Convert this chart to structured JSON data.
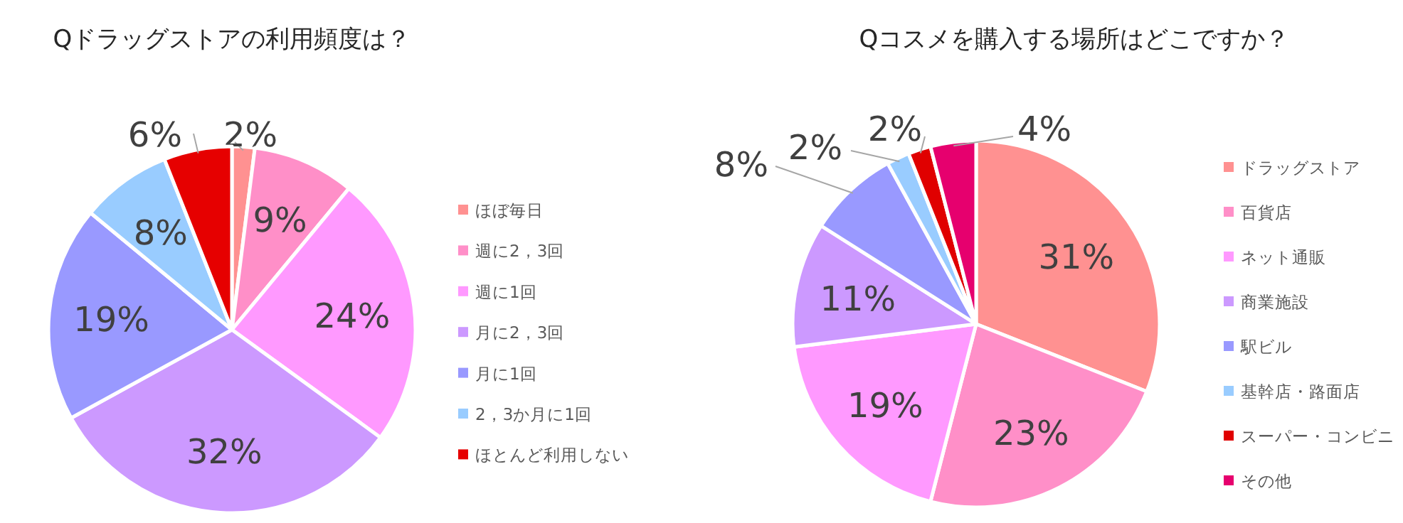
{
  "chart_data": [
    {
      "type": "pie",
      "title": "Qドラッグストアの利用頻度は？",
      "legend": "right",
      "categories": [
        "ほぼ毎日",
        "週に2，3回",
        "週に1回",
        "月に2，3回",
        "月に1回",
        "2，3か月に1回",
        "ほとんど利用しない"
      ],
      "values": [
        2,
        9,
        24,
        32,
        19,
        8,
        6
      ],
      "value_labels": [
        "2%",
        "9%",
        "24%",
        "32%",
        "19%",
        "8%",
        "6%"
      ],
      "colors": [
        "#ff9191",
        "#ff8fc8",
        "#ff99ff",
        "#cc99ff",
        "#9999ff",
        "#99ccff",
        "#e60000"
      ]
    },
    {
      "type": "pie",
      "title": "Qコスメを購入する場所はどこですか？",
      "legend": "right",
      "categories": [
        "ドラッグストア",
        "百貨店",
        "ネット通販",
        "商業施設",
        "駅ビル",
        "基幹店・路面店",
        "スーパー・コンビニ",
        "その他"
      ],
      "values": [
        31,
        23,
        19,
        11,
        8,
        2,
        2,
        4
      ],
      "value_labels": [
        "31%",
        "23%",
        "19%",
        "11%",
        "8%",
        "2%",
        "2%",
        "4%"
      ],
      "colors": [
        "#ff9191",
        "#ff8fc8",
        "#ff99ff",
        "#cc99ff",
        "#9999ff",
        "#99ccff",
        "#e00000",
        "#e6006e"
      ]
    }
  ]
}
